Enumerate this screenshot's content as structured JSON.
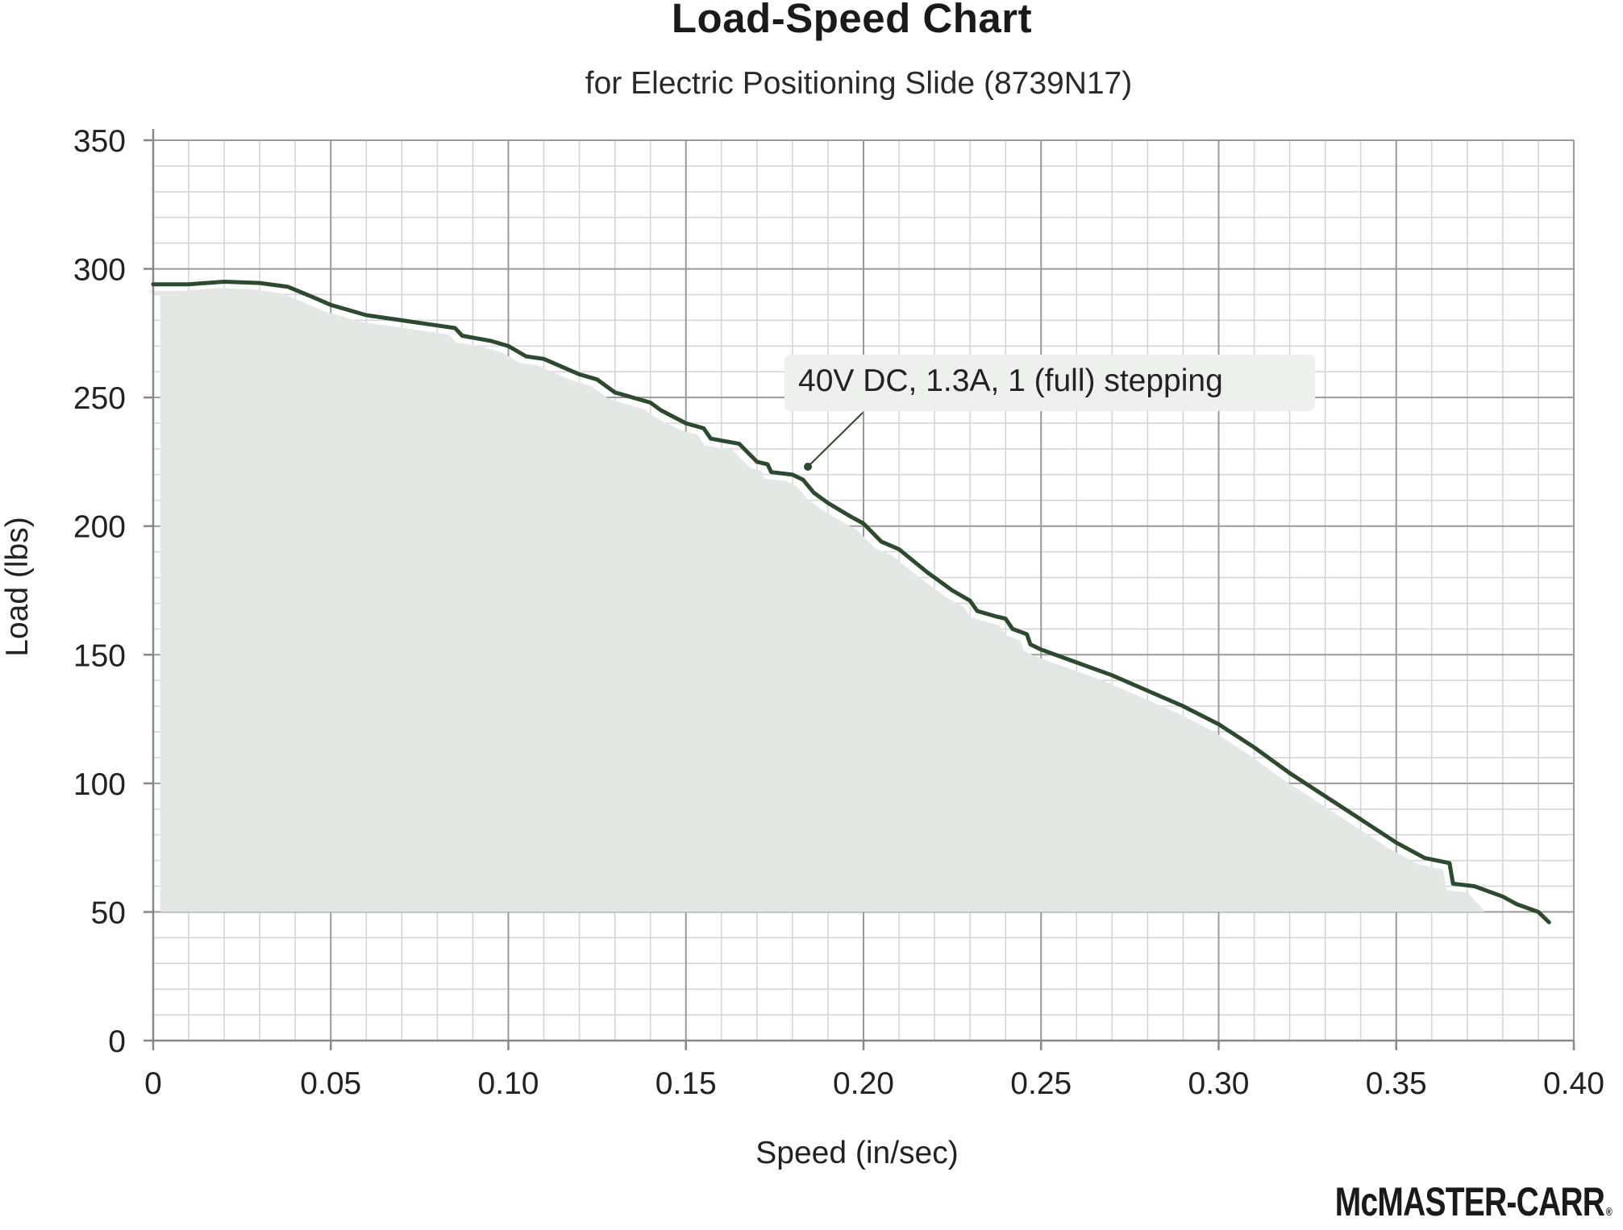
{
  "chart_data": {
    "type": "line",
    "title": "Load-Speed Chart",
    "subtitle": "for Electric Positioning Slide (8739N17)",
    "xlabel": "Speed (in/sec)",
    "ylabel": "Load (lbs)",
    "xlim": [
      0,
      0.4
    ],
    "ylim": [
      0,
      350
    ],
    "x_ticks": [
      "0",
      "0.05",
      "0.10",
      "0.15",
      "0.20",
      "0.25",
      "0.30",
      "0.35",
      "0.40"
    ],
    "y_ticks": [
      "0",
      "50",
      "100",
      "150",
      "200",
      "250",
      "300",
      "350"
    ],
    "grid": true,
    "shaded_region": "area under curve from load 50 lbs",
    "annotation": "40V DC, 1.3A, 1 (full) stepping",
    "colors": {
      "line": "#2b4a2e",
      "fill": "#e6e9e6",
      "grid_major": "#9a9a9a",
      "grid_minor": "#d4d4d4"
    },
    "series": [
      {
        "values": [
          [
            0.0,
            294
          ],
          [
            0.01,
            294
          ],
          [
            0.02,
            295
          ],
          [
            0.03,
            294.5
          ],
          [
            0.038,
            293
          ],
          [
            0.045,
            289
          ],
          [
            0.05,
            286
          ],
          [
            0.06,
            282
          ],
          [
            0.07,
            280
          ],
          [
            0.08,
            278
          ],
          [
            0.085,
            277
          ],
          [
            0.087,
            274
          ],
          [
            0.095,
            272
          ],
          [
            0.1,
            270
          ],
          [
            0.105,
            266
          ],
          [
            0.11,
            265
          ],
          [
            0.12,
            259
          ],
          [
            0.125,
            257
          ],
          [
            0.13,
            252
          ],
          [
            0.14,
            248
          ],
          [
            0.143,
            245
          ],
          [
            0.15,
            240
          ],
          [
            0.155,
            238
          ],
          [
            0.157,
            234
          ],
          [
            0.165,
            232
          ],
          [
            0.17,
            225
          ],
          [
            0.173,
            224
          ],
          [
            0.174,
            221
          ],
          [
            0.18,
            220
          ],
          [
            0.183,
            218
          ],
          [
            0.186,
            213
          ],
          [
            0.19,
            209
          ],
          [
            0.196,
            204
          ],
          [
            0.2,
            201
          ],
          [
            0.205,
            194
          ],
          [
            0.21,
            191
          ],
          [
            0.218,
            182
          ],
          [
            0.22,
            180
          ],
          [
            0.225,
            175
          ],
          [
            0.23,
            171
          ],
          [
            0.232,
            167
          ],
          [
            0.237,
            165
          ],
          [
            0.24,
            164
          ],
          [
            0.242,
            160
          ],
          [
            0.246,
            158
          ],
          [
            0.247,
            154
          ],
          [
            0.25,
            152
          ],
          [
            0.26,
            147
          ],
          [
            0.27,
            142
          ],
          [
            0.28,
            136
          ],
          [
            0.29,
            130
          ],
          [
            0.3,
            123
          ],
          [
            0.31,
            114
          ],
          [
            0.32,
            104
          ],
          [
            0.33,
            95
          ],
          [
            0.34,
            86
          ],
          [
            0.35,
            77
          ],
          [
            0.358,
            71
          ],
          [
            0.365,
            69
          ],
          [
            0.366,
            61
          ],
          [
            0.372,
            60
          ],
          [
            0.38,
            56
          ],
          [
            0.384,
            53
          ],
          [
            0.39,
            50
          ],
          [
            0.393,
            46
          ]
        ]
      }
    ]
  },
  "brand": {
    "name": "McMASTER-CARR",
    "mark": "®"
  }
}
